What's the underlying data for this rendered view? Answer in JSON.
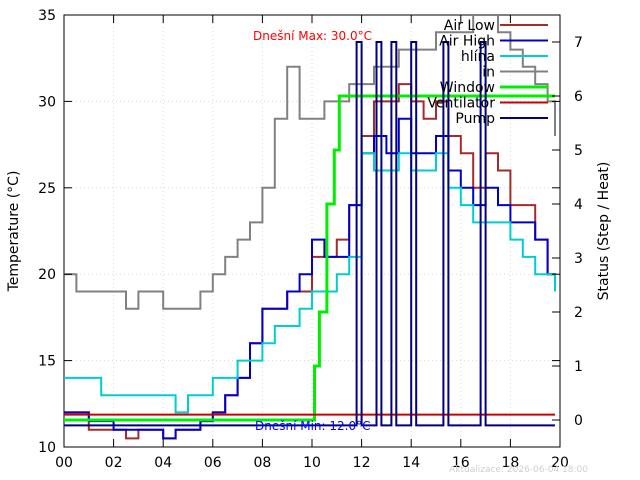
{
  "chart_data": {
    "type": "line",
    "xlabel": "",
    "ylabel": "Temperature (°C)",
    "y2label": "Status (Step / Heat)",
    "xlim": [
      0,
      20
    ],
    "ylim": [
      10,
      35
    ],
    "y2lim": [
      -0.5,
      7.5
    ],
    "x_ticks": [
      "00",
      "02",
      "04",
      "06",
      "08",
      "10",
      "12",
      "14",
      "16",
      "18",
      "20"
    ],
    "y_ticks": [
      "10",
      "15",
      "20",
      "25",
      "30",
      "35"
    ],
    "y2_ticks": [
      "0",
      "1",
      "2",
      "3",
      "4",
      "5",
      "6",
      "7"
    ],
    "grid": true,
    "legend_position": "top-right",
    "annotations": {
      "max_text": "Dnešní Max: 30.0°C",
      "min_text": "Dnešní Min: 12.0°C",
      "updated_text": "Aktualizace: 2026-06-04 18:00"
    },
    "series": [
      {
        "name": "Air Low",
        "color": "#a52a2a",
        "axis": "y1",
        "x": [
          0,
          0.5,
          1,
          1.5,
          2,
          2.5,
          3,
          3.5,
          4,
          4.5,
          5,
          5.5,
          6,
          6.5,
          7,
          7.5,
          8,
          8.5,
          9,
          9.5,
          10,
          10.5,
          11,
          11.5,
          12,
          12.5,
          13,
          13.5,
          14,
          14.5,
          15,
          15.5,
          16,
          16.5,
          17,
          17.5,
          18,
          18.5,
          19,
          19.5,
          19.8
        ],
        "y": [
          12,
          12,
          11,
          11,
          11,
          10.5,
          11,
          11,
          10.5,
          11,
          11,
          11.5,
          12,
          13,
          14,
          16,
          18,
          18,
          19,
          19,
          21,
          21,
          22,
          24,
          28,
          30,
          30,
          31,
          30,
          29,
          30,
          28,
          27,
          25,
          27,
          26,
          24,
          24,
          22,
          20,
          19
        ]
      },
      {
        "name": "Air High",
        "color": "#0000cd",
        "axis": "y1",
        "x": [
          0,
          0.5,
          1,
          1.5,
          2,
          2.5,
          3,
          3.5,
          4,
          4.5,
          5,
          5.5,
          6,
          6.5,
          7,
          7.5,
          8,
          8.5,
          9,
          9.5,
          10,
          10.5,
          11,
          11.5,
          12,
          12.5,
          13,
          13.5,
          14,
          14.5,
          15,
          15.5,
          16,
          16.5,
          17,
          17.5,
          18,
          18.5,
          19,
          19.5,
          19.8
        ],
        "y": [
          12,
          12,
          11.5,
          11.5,
          11,
          11,
          11,
          11,
          10.5,
          11,
          11,
          11.5,
          12,
          13,
          14,
          16,
          18,
          18,
          19,
          20,
          22,
          21,
          21,
          24,
          27,
          28,
          27,
          29,
          27,
          27,
          28,
          26,
          25,
          24,
          25,
          24,
          23,
          23,
          22,
          20,
          19
        ]
      },
      {
        "name": "hlína",
        "color": "#00cdcd",
        "axis": "y1",
        "x": [
          0,
          0.5,
          1,
          1.5,
          2,
          2.5,
          3,
          3.5,
          4,
          4.5,
          5,
          5.5,
          6,
          6.5,
          7,
          7.5,
          8,
          8.5,
          9,
          9.5,
          10,
          10.5,
          11,
          11.5,
          12,
          12.5,
          13,
          13.5,
          14,
          14.5,
          15,
          15.5,
          16,
          16.5,
          17,
          17.5,
          18,
          18.5,
          19,
          19.5,
          19.8
        ],
        "y": [
          14,
          14,
          14,
          13,
          13,
          13,
          13,
          13,
          13,
          12,
          13,
          13,
          14,
          14,
          15,
          15,
          16,
          17,
          17,
          18,
          19,
          19,
          20,
          21,
          27,
          26,
          26,
          27,
          26,
          26,
          27,
          25,
          24,
          23,
          23,
          23,
          22,
          21,
          20,
          20,
          19
        ]
      },
      {
        "name": "in",
        "color": "#808080",
        "axis": "y1",
        "x": [
          0,
          0.5,
          1,
          1.5,
          2,
          2.5,
          3,
          3.5,
          4,
          4.5,
          5,
          5.5,
          6,
          6.5,
          7,
          7.5,
          8,
          8.5,
          9,
          9.5,
          10,
          10.5,
          11,
          11.5,
          12,
          12.5,
          13,
          13.5,
          14,
          14.5,
          15,
          15.5,
          16,
          16.5,
          17,
          17.5,
          18,
          18.5,
          19,
          19.5,
          19.8
        ],
        "y": [
          20,
          19,
          19,
          19,
          19,
          18,
          19,
          19,
          18,
          18,
          18,
          19,
          20,
          21,
          22,
          23,
          25,
          29,
          32,
          29,
          29,
          30,
          30,
          31,
          31,
          32,
          32,
          33,
          33,
          33,
          34,
          34,
          34,
          35,
          35,
          34,
          33,
          32,
          31,
          30,
          28
        ]
      },
      {
        "name": "Window",
        "color": "#00ee00",
        "axis": "y2",
        "step": true,
        "x": [
          0,
          10.1,
          10.1,
          10.3,
          10.3,
          10.6,
          10.6,
          10.9,
          10.9,
          11.1,
          11.1,
          19.8
        ],
        "y": [
          0,
          0,
          1,
          1,
          2,
          2,
          4,
          4,
          5,
          5,
          6,
          6
        ]
      },
      {
        "name": "Ventilator",
        "color": "#cd0000",
        "axis": "y2",
        "step": true,
        "x": [
          0,
          19.8
        ],
        "y": [
          0.1,
          0.1
        ]
      },
      {
        "name": "Pump",
        "color": "#000080",
        "axis": "y2",
        "step": true,
        "x": [
          0,
          11.8,
          11.8,
          12,
          12,
          12.6,
          12.6,
          12.8,
          12.8,
          13.2,
          13.2,
          13.4,
          13.4,
          14,
          14,
          14.2,
          14.2,
          15.3,
          15.3,
          15.5,
          15.5,
          16.8,
          16.8,
          17,
          17,
          19.8
        ],
        "y": [
          -0.1,
          -0.1,
          7,
          7,
          -0.1,
          -0.1,
          7,
          7,
          -0.1,
          -0.1,
          7,
          7,
          -0.1,
          -0.1,
          7,
          7,
          -0.1,
          -0.1,
          7,
          7,
          -0.1,
          -0.1,
          7,
          7,
          -0.1,
          -0.1
        ]
      }
    ]
  }
}
